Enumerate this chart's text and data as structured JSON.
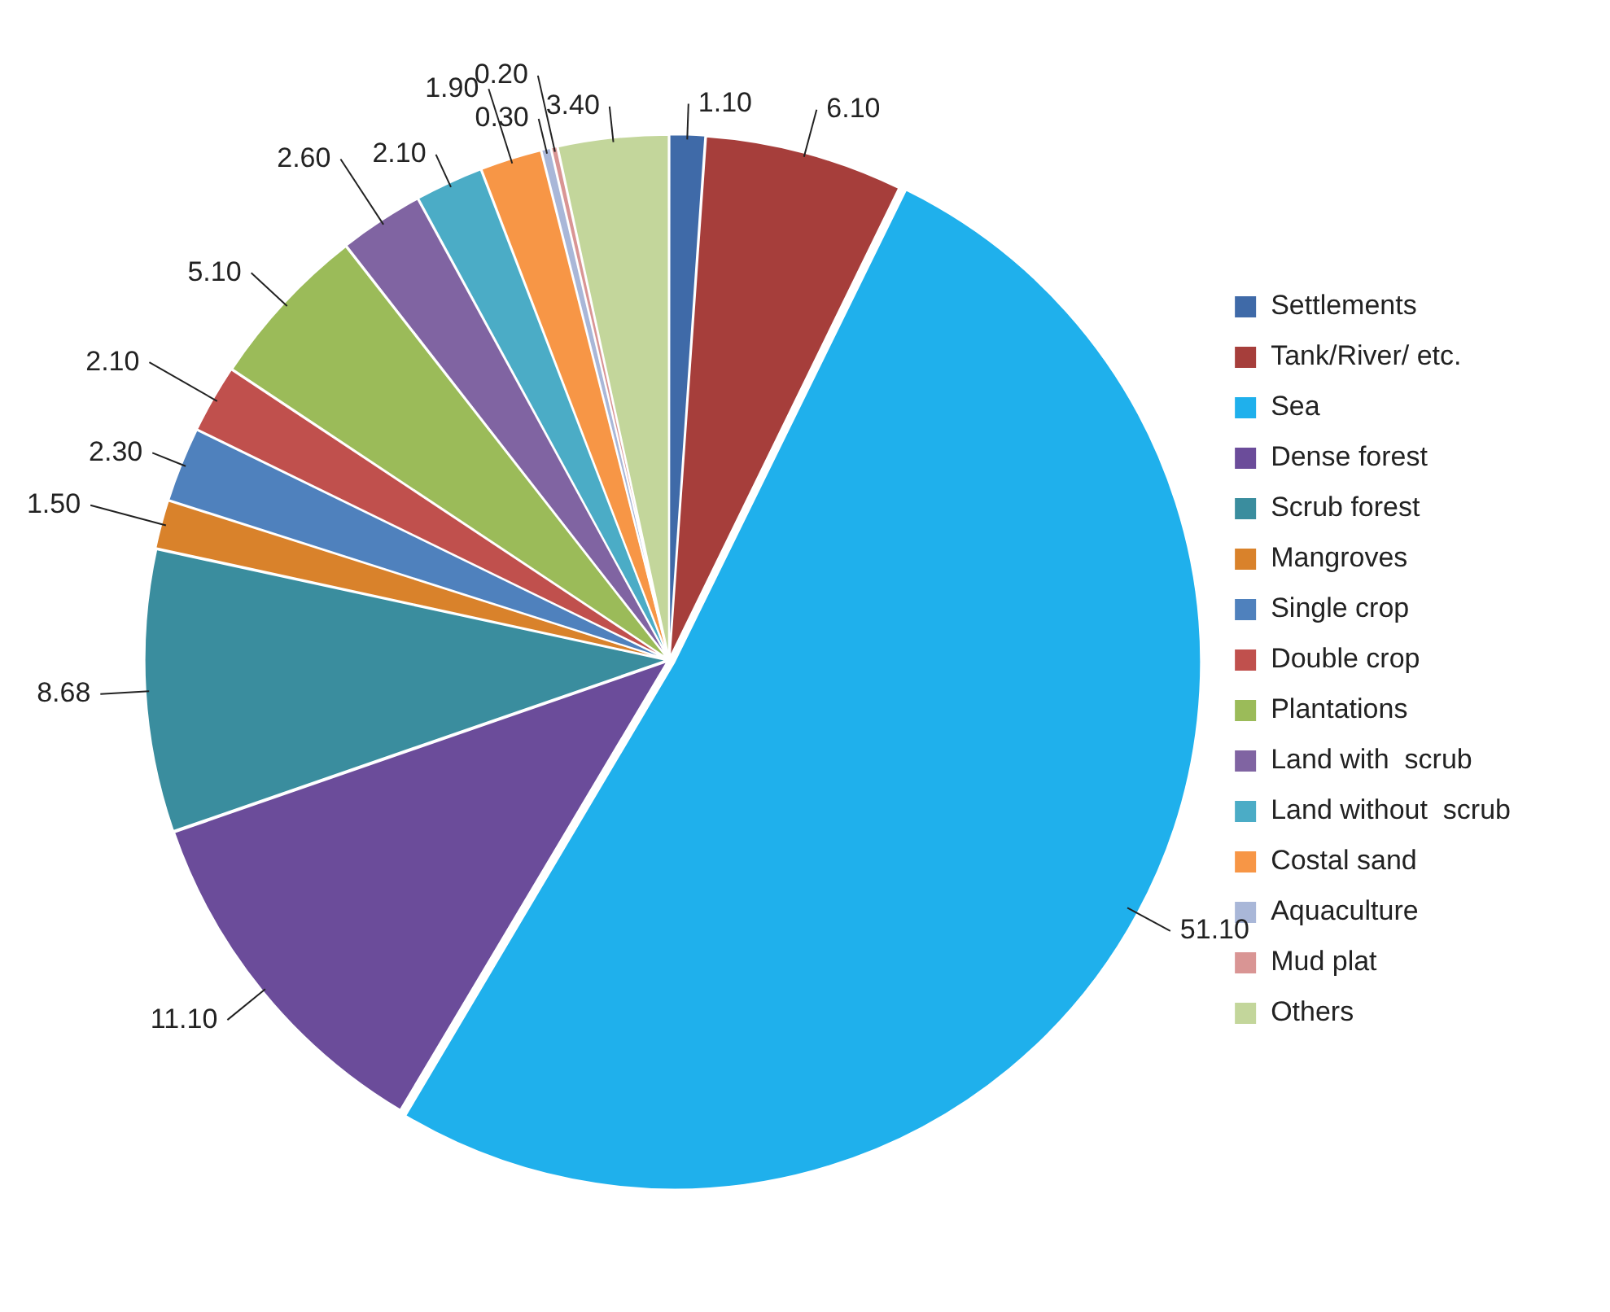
{
  "chart_data": {
    "type": "pie",
    "categories": [
      "Settlements",
      "Tank/River/ etc.",
      "Sea",
      "Dense forest",
      "Scrub forest",
      "Mangroves",
      "Single crop",
      "Double crop",
      "Plantations",
      "Land with  scrub",
      "Land without  scrub",
      "Costal sand",
      "Aquaculture",
      "Mud plat",
      "Others"
    ],
    "values": [
      1.1,
      6.1,
      51.1,
      11.1,
      8.68,
      1.5,
      2.3,
      2.1,
      5.1,
      2.6,
      2.1,
      1.9,
      0.3,
      0.2,
      3.4
    ],
    "value_labels": [
      "1.10",
      "6.10",
      "51.10",
      "11.10",
      "8.68",
      "1.50",
      "2.30",
      "2.10",
      "5.10",
      "2.60",
      "2.10",
      "1.90",
      "0.30",
      "0.20",
      "3.40"
    ],
    "colors": [
      "#3f6aa8",
      "#a63e3b",
      "#1fb0ec",
      "#6b4c9a",
      "#3a8d9e",
      "#d9822b",
      "#4f81bd",
      "#c0504d",
      "#9bbb59",
      "#8064a2",
      "#4bacc6",
      "#f79646",
      "#a9b7d8",
      "#d99594",
      "#c3d69b"
    ],
    "legend": "right"
  }
}
